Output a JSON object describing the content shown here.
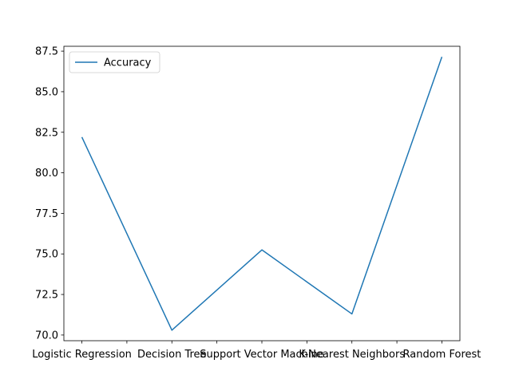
{
  "chart_data": {
    "type": "line",
    "title": "",
    "xlabel": "",
    "ylabel": "",
    "categories": [
      "Logistic Regression",
      "Decision Tree",
      "Support Vector Machine",
      "K-Nearest Neighbors",
      "Random Forest"
    ],
    "series": [
      {
        "name": "Accuracy",
        "values": [
          82.2,
          70.3,
          75.25,
          71.3,
          87.15
        ],
        "color": "#1f77b4"
      }
    ],
    "ylim": [
      69.65,
      87.8
    ],
    "yticks": [
      70.0,
      72.5,
      75.0,
      77.5,
      80.0,
      82.5,
      85.0,
      87.5
    ],
    "ytick_labels": [
      "70.0",
      "72.5",
      "75.0",
      "77.5",
      "80.0",
      "82.5",
      "85.0",
      "87.5"
    ],
    "xticks": [
      0,
      0.5,
      1,
      1.5,
      2,
      2.5,
      3,
      3.5,
      4
    ],
    "legend": {
      "position": "top-left",
      "entries": [
        "Accuracy"
      ]
    },
    "grid": false
  }
}
